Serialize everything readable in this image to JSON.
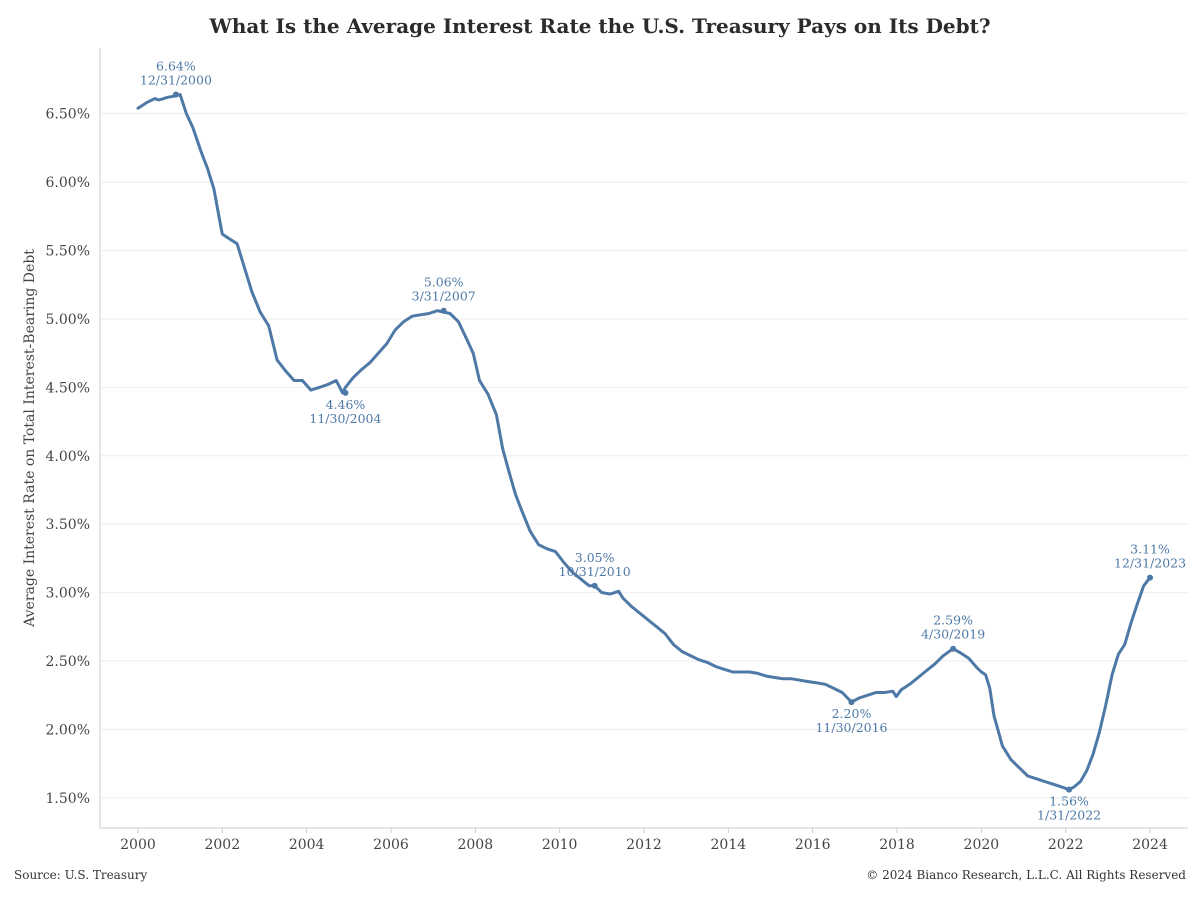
{
  "title": "What Is the Average Interest Rate the U.S. Treasury Pays on Its Debt?",
  "source": "Source: U.S. Treasury",
  "copyright": "© 2024 Bianco Research, L.L.C. All Rights Reserved",
  "colors": {
    "line": "#4e79a7",
    "grid": "#eeeeee",
    "axis": "#cccccc"
  },
  "chart_data": {
    "type": "line",
    "title": "What Is the Average Interest Rate the U.S. Treasury Pays on Its Debt?",
    "xlabel": "",
    "ylabel": "Average Interest Rate on Total Interest-Bearing Debt",
    "xlim": [
      1999.1,
      2024.9
    ],
    "ylim": [
      1.28,
      6.98
    ],
    "grid": true,
    "xticks": [
      2000,
      2002,
      2004,
      2006,
      2008,
      2010,
      2012,
      2014,
      2016,
      2018,
      2020,
      2022,
      2024
    ],
    "xtick_labels": [
      "2000",
      "2002",
      "2004",
      "2006",
      "2008",
      "2010",
      "2012",
      "2014",
      "2016",
      "2018",
      "2020",
      "2022",
      "2024"
    ],
    "yticks": [
      1.5,
      2.0,
      2.5,
      3.0,
      3.5,
      4.0,
      4.5,
      5.0,
      5.5,
      6.0,
      6.5
    ],
    "ytick_labels": [
      "1.50%",
      "2.00%",
      "2.50%",
      "3.00%",
      "3.50%",
      "4.00%",
      "4.50%",
      "5.00%",
      "5.50%",
      "6.00%",
      "6.50%"
    ],
    "series": [
      {
        "x": [
          2000.0,
          2000.2,
          2000.4,
          2000.5,
          2000.7,
          2000.9,
          2001.0,
          2001.15,
          2001.3,
          2001.5,
          2001.65,
          2001.8,
          2001.95,
          2002.0,
          2002.2,
          2002.35,
          2002.5,
          2002.7,
          2002.9,
          2003.1,
          2003.3,
          2003.5,
          2003.7,
          2003.9,
          2004.1,
          2004.3,
          2004.5,
          2004.7,
          2004.85,
          2004.92,
          2005.1,
          2005.3,
          2005.5,
          2005.7,
          2005.9,
          2006.1,
          2006.3,
          2006.5,
          2006.7,
          2006.9,
          2007.1,
          2007.25,
          2007.4,
          2007.6,
          2007.8,
          2007.95,
          2008.1,
          2008.3,
          2008.5,
          2008.65,
          2008.8,
          2008.95,
          2009.1,
          2009.3,
          2009.5,
          2009.7,
          2009.9,
          2010.1,
          2010.3,
          2010.5,
          2010.7,
          2010.83,
          2011.0,
          2011.2,
          2011.4,
          2011.5,
          2011.7,
          2011.9,
          2012.1,
          2012.3,
          2012.5,
          2012.7,
          2012.9,
          2013.1,
          2013.3,
          2013.5,
          2013.7,
          2013.9,
          2014.0,
          2014.1,
          2014.3,
          2014.5,
          2014.7,
          2014.9,
          2015.1,
          2015.3,
          2015.5,
          2015.7,
          2015.9,
          2016.1,
          2016.3,
          2016.5,
          2016.7,
          2016.92,
          2017.1,
          2017.3,
          2017.5,
          2017.7,
          2017.9,
          2017.98,
          2018.1,
          2018.3,
          2018.5,
          2018.7,
          2018.9,
          2019.1,
          2019.33,
          2019.5,
          2019.7,
          2019.9,
          2020.0,
          2020.1,
          2020.2,
          2020.3,
          2020.5,
          2020.7,
          2020.9,
          2021.1,
          2021.3,
          2021.5,
          2021.7,
          2021.9,
          2022.08,
          2022.2,
          2022.35,
          2022.5,
          2022.65,
          2022.8,
          2022.95,
          2023.1,
          2023.25,
          2023.4,
          2023.55,
          2023.7,
          2023.85,
          2024.0
        ],
        "y": [
          6.54,
          6.58,
          6.61,
          6.6,
          6.62,
          6.63,
          6.64,
          6.5,
          6.4,
          6.22,
          6.1,
          5.95,
          5.7,
          5.62,
          5.58,
          5.55,
          5.4,
          5.2,
          5.05,
          4.95,
          4.7,
          4.62,
          4.55,
          4.55,
          4.48,
          4.5,
          4.52,
          4.55,
          4.46,
          4.5,
          4.57,
          4.63,
          4.68,
          4.75,
          4.82,
          4.92,
          4.98,
          5.02,
          5.03,
          5.04,
          5.06,
          5.05,
          5.04,
          4.98,
          4.85,
          4.75,
          4.55,
          4.45,
          4.3,
          4.05,
          3.88,
          3.72,
          3.6,
          3.45,
          3.35,
          3.32,
          3.3,
          3.22,
          3.15,
          3.1,
          3.05,
          3.05,
          3.0,
          2.99,
          3.01,
          2.96,
          2.9,
          2.85,
          2.8,
          2.75,
          2.7,
          2.62,
          2.57,
          2.54,
          2.51,
          2.49,
          2.46,
          2.44,
          2.43,
          2.42,
          2.42,
          2.42,
          2.41,
          2.39,
          2.38,
          2.37,
          2.37,
          2.36,
          2.35,
          2.34,
          2.33,
          2.3,
          2.27,
          2.2,
          2.23,
          2.25,
          2.27,
          2.27,
          2.28,
          2.24,
          2.29,
          2.33,
          2.38,
          2.43,
          2.48,
          2.54,
          2.59,
          2.56,
          2.52,
          2.45,
          2.42,
          2.4,
          2.3,
          2.1,
          1.88,
          1.78,
          1.72,
          1.66,
          1.64,
          1.62,
          1.6,
          1.58,
          1.56,
          1.58,
          1.62,
          1.7,
          1.82,
          1.98,
          2.18,
          2.4,
          2.55,
          2.62,
          2.78,
          2.92,
          3.05,
          3.11
        ]
      }
    ],
    "annotations": [
      {
        "x": 2000.9,
        "y": 6.64,
        "value": "6.64%",
        "date": "12/31/2000",
        "pos": "above"
      },
      {
        "x": 2004.92,
        "y": 4.46,
        "value": "4.46%",
        "date": "11/30/2004",
        "pos": "below"
      },
      {
        "x": 2007.25,
        "y": 5.06,
        "value": "5.06%",
        "date": "3/31/2007",
        "pos": "above"
      },
      {
        "x": 2010.83,
        "y": 3.05,
        "value": "3.05%",
        "date": "10/31/2010",
        "pos": "above"
      },
      {
        "x": 2016.92,
        "y": 2.2,
        "value": "2.20%",
        "date": "11/30/2016",
        "pos": "below"
      },
      {
        "x": 2019.33,
        "y": 2.59,
        "value": "2.59%",
        "date": "4/30/2019",
        "pos": "above"
      },
      {
        "x": 2022.08,
        "y": 1.56,
        "value": "1.56%",
        "date": "1/31/2022",
        "pos": "below"
      },
      {
        "x": 2024.0,
        "y": 3.11,
        "value": "3.11%",
        "date": "12/31/2023",
        "pos": "above"
      }
    ]
  }
}
